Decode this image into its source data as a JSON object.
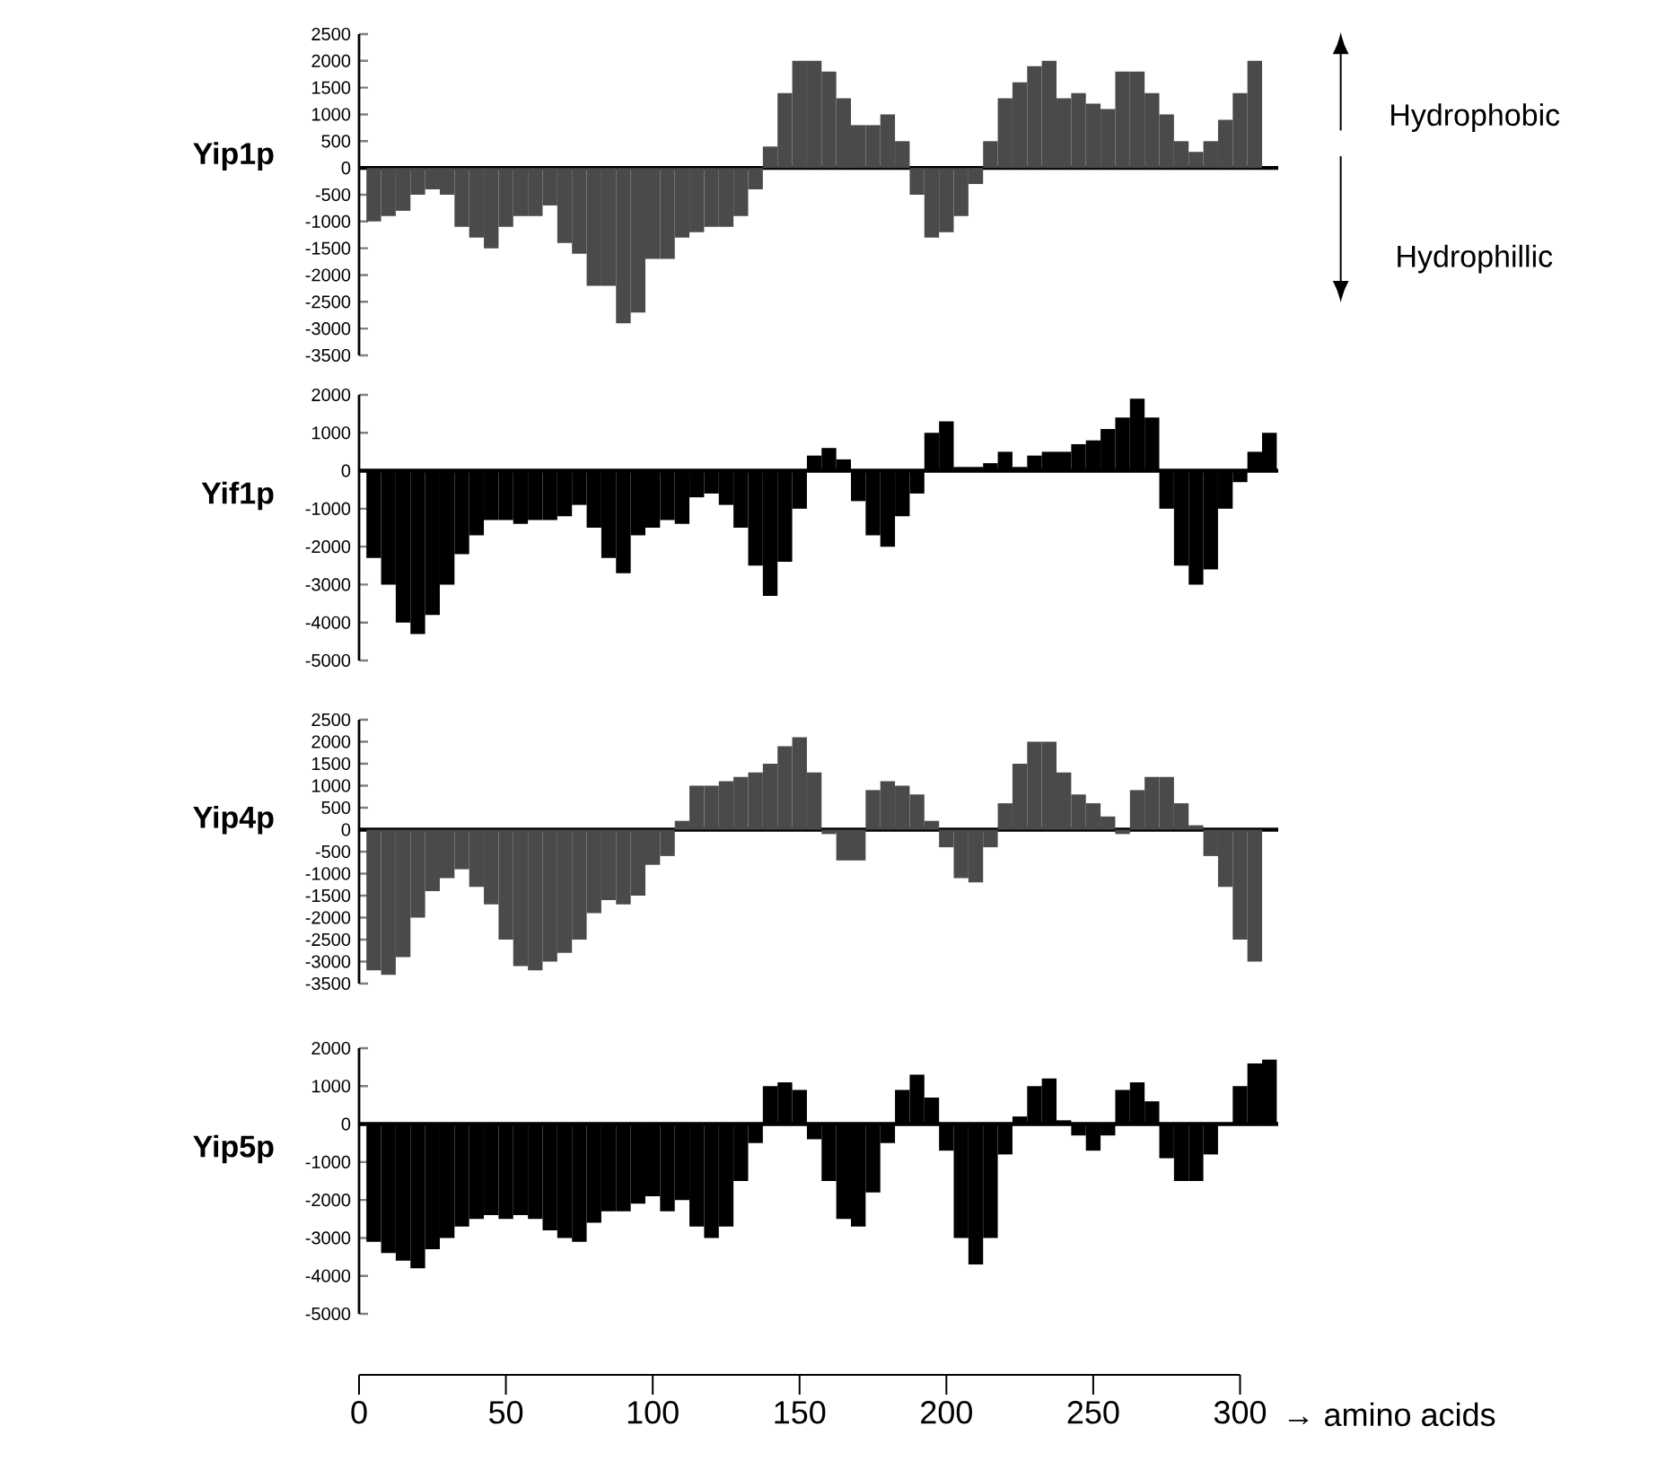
{
  "chart_data": [
    {
      "type": "bar",
      "ylabel": "Yip1p",
      "color": "#4a4a4a",
      "xlim": [
        0,
        313
      ],
      "ylim": [
        -3500,
        2500
      ],
      "yticks": [
        -3500,
        -3000,
        -2500,
        -2000,
        -1500,
        -1000,
        -500,
        0,
        500,
        1000,
        1500,
        2000,
        2500
      ],
      "tick_labels": "y",
      "annotations": [
        "Hydrophobic",
        "Hydrophillic"
      ],
      "x": [
        5,
        10,
        15,
        20,
        25,
        30,
        35,
        40,
        45,
        50,
        55,
        60,
        65,
        70,
        75,
        80,
        85,
        90,
        95,
        100,
        105,
        110,
        115,
        120,
        125,
        130,
        135,
        140,
        145,
        150,
        155,
        160,
        165,
        170,
        175,
        180,
        185,
        190,
        195,
        200,
        205,
        210,
        215,
        220,
        225,
        230,
        235,
        240,
        245,
        250,
        255,
        260,
        265,
        270,
        275,
        280,
        285,
        290,
        295,
        300,
        305
      ],
      "values": [
        -1000,
        -900,
        -800,
        -500,
        -400,
        -500,
        -1100,
        -1300,
        -1500,
        -1100,
        -900,
        -900,
        -700,
        -1400,
        -1600,
        -2200,
        -2200,
        -2900,
        -2700,
        -1700,
        -1700,
        -1300,
        -1200,
        -1100,
        -1100,
        -900,
        -400,
        400,
        1400,
        2000,
        2000,
        1800,
        1300,
        800,
        800,
        1000,
        500,
        -500,
        -1300,
        -1200,
        -900,
        -300,
        500,
        1300,
        1600,
        1900,
        2000,
        1300,
        1400,
        1200,
        1100,
        1800,
        1800,
        1400,
        1000,
        500,
        300,
        500,
        900,
        1400,
        2000
      ]
    },
    {
      "type": "bar",
      "ylabel": "Yif1p",
      "color": "#000000",
      "xlim": [
        0,
        313
      ],
      "ylim": [
        -5000,
        2000
      ],
      "yticks": [
        -5000,
        -4000,
        -3000,
        -2000,
        -1000,
        0,
        1000,
        2000
      ],
      "tick_labels": "y",
      "x": [
        5,
        10,
        15,
        20,
        25,
        30,
        35,
        40,
        45,
        50,
        55,
        60,
        65,
        70,
        75,
        80,
        85,
        90,
        95,
        100,
        105,
        110,
        115,
        120,
        125,
        130,
        135,
        140,
        145,
        150,
        155,
        160,
        165,
        170,
        175,
        180,
        185,
        190,
        195,
        200,
        205,
        210,
        215,
        220,
        225,
        230,
        235,
        240,
        245,
        250,
        255,
        260,
        265,
        270,
        275,
        280,
        285,
        290,
        295,
        300,
        305,
        310
      ],
      "values": [
        -2300,
        -3000,
        -4000,
        -4300,
        -3800,
        -3000,
        -2200,
        -1700,
        -1300,
        -1300,
        -1400,
        -1300,
        -1300,
        -1200,
        -900,
        -1500,
        -2300,
        -2700,
        -1700,
        -1500,
        -1300,
        -1400,
        -700,
        -600,
        -900,
        -1500,
        -2500,
        -3300,
        -2400,
        -1000,
        400,
        600,
        300,
        -800,
        -1700,
        -2000,
        -1200,
        -600,
        1000,
        1300,
        100,
        100,
        200,
        500,
        100,
        400,
        500,
        500,
        700,
        800,
        1100,
        1400,
        1900,
        1400,
        -1000,
        -2500,
        -3000,
        -2600,
        -1000,
        -300,
        500,
        1000
      ]
    },
    {
      "type": "bar",
      "ylabel": "Yip4p",
      "color": "#4a4a4a",
      "xlim": [
        0,
        313
      ],
      "ylim": [
        -3500,
        2500
      ],
      "yticks": [
        -3500,
        -3000,
        -2500,
        -2000,
        -1500,
        -1000,
        -500,
        0,
        500,
        1000,
        1500,
        2000,
        2500
      ],
      "tick_labels": "y",
      "x": [
        5,
        10,
        15,
        20,
        25,
        30,
        35,
        40,
        45,
        50,
        55,
        60,
        65,
        70,
        75,
        80,
        85,
        90,
        95,
        100,
        105,
        110,
        115,
        120,
        125,
        130,
        135,
        140,
        145,
        150,
        155,
        160,
        165,
        170,
        175,
        180,
        185,
        190,
        195,
        200,
        205,
        210,
        215,
        220,
        225,
        230,
        235,
        240,
        245,
        250,
        255,
        260,
        265,
        270,
        275,
        280,
        285,
        290,
        295,
        300,
        305
      ],
      "values": [
        -3200,
        -3300,
        -2900,
        -2000,
        -1400,
        -1100,
        -900,
        -1300,
        -1700,
        -2500,
        -3100,
        -3200,
        -3000,
        -2800,
        -2500,
        -1900,
        -1600,
        -1700,
        -1500,
        -800,
        -600,
        200,
        1000,
        1000,
        1100,
        1200,
        1300,
        1500,
        1900,
        2100,
        1300,
        -100,
        -700,
        -700,
        900,
        1100,
        1000,
        800,
        200,
        -400,
        -1100,
        -1200,
        -400,
        600,
        1500,
        2000,
        2000,
        1300,
        800,
        600,
        300,
        -100,
        900,
        1200,
        1200,
        600,
        100,
        -600,
        -1300,
        -2500,
        -3000
      ]
    },
    {
      "type": "bar",
      "ylabel": "Yip5p",
      "color": "#000000",
      "xlim": [
        0,
        313
      ],
      "ylim": [
        -5000,
        2000
      ],
      "yticks": [
        -5000,
        -4000,
        -3000,
        -2000,
        -1000,
        0,
        1000,
        2000
      ],
      "xticks": [
        0,
        50,
        100,
        150,
        200,
        250,
        300
      ],
      "xlabel": "→ amino acids",
      "x": [
        5,
        10,
        15,
        20,
        25,
        30,
        35,
        40,
        45,
        50,
        55,
        60,
        65,
        70,
        75,
        80,
        85,
        90,
        95,
        100,
        105,
        110,
        115,
        120,
        125,
        130,
        135,
        140,
        145,
        150,
        155,
        160,
        165,
        170,
        175,
        180,
        185,
        190,
        195,
        200,
        205,
        210,
        215,
        220,
        225,
        230,
        235,
        240,
        245,
        250,
        255,
        260,
        265,
        270,
        275,
        280,
        285,
        290,
        295,
        300,
        305,
        310
      ],
      "values": [
        -3100,
        -3400,
        -3600,
        -3800,
        -3300,
        -3000,
        -2700,
        -2500,
        -2400,
        -2500,
        -2400,
        -2500,
        -2800,
        -3000,
        -3100,
        -2600,
        -2300,
        -2300,
        -2100,
        -1900,
        -2300,
        -2000,
        -2700,
        -3000,
        -2700,
        -1500,
        -500,
        1000,
        1100,
        900,
        -400,
        -1500,
        -2500,
        -2700,
        -1800,
        -500,
        900,
        1300,
        700,
        -700,
        -3000,
        -3700,
        -3000,
        -800,
        200,
        1000,
        1200,
        100,
        -300,
        -700,
        -300,
        900,
        1100,
        600,
        -900,
        -1500,
        -1500,
        -800,
        0,
        1000,
        1600,
        1700
      ]
    }
  ]
}
